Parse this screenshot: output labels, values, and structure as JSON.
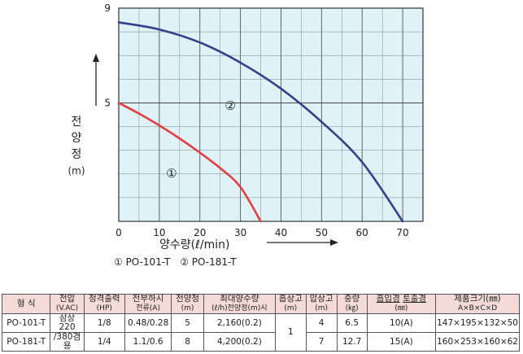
{
  "chart_data": {
    "type": "line",
    "xlabel": "양수량(ℓ/min)",
    "ylabel_chars": [
      "전",
      "양",
      "정",
      "(m)"
    ],
    "x_ticks": [
      "0",
      "10",
      "20",
      "30",
      "40",
      "50",
      "60",
      "70"
    ],
    "y_ticks": [
      "9",
      "5"
    ],
    "xlim": [
      0,
      75
    ],
    "ylim": [
      0,
      9
    ],
    "grid": true,
    "background": "#dff2f8",
    "series": [
      {
        "name": "① PO-101-T",
        "color": "#e04040",
        "x": [
          0,
          5,
          10,
          15,
          20,
          25,
          30,
          35
        ],
        "y": [
          5.0,
          4.55,
          4.05,
          3.5,
          2.9,
          2.25,
          1.45,
          0.0
        ]
      },
      {
        "name": "② PO-181-T",
        "color": "#34408a",
        "x": [
          0,
          10,
          20,
          30,
          40,
          50,
          60,
          70
        ],
        "y": [
          8.4,
          8.1,
          7.55,
          6.7,
          5.6,
          4.2,
          2.5,
          0.0
        ]
      }
    ],
    "curve_labels": [
      {
        "text": "②",
        "x": 27.5,
        "y": 4.7
      },
      {
        "text": "①",
        "x": 13,
        "y": 1.85
      }
    ]
  },
  "legend": {
    "item1": "① PO-101-T",
    "item2": "② PO-181-T"
  },
  "table": {
    "headers": {
      "model": "형 식",
      "voltage": "전압",
      "voltage_unit": "(V.AC)",
      "power": "정격출력",
      "power_unit": "(HP)",
      "current": "전부하시",
      "current_unit": "전류(A)",
      "head": "전양정",
      "head_unit": "(m)",
      "maxflow": "최대양수량",
      "maxflow_unit": "(ℓ/h)전양정(m)시",
      "suction": "흡상고",
      "suction_unit": "(m)",
      "pressure": "압상고",
      "pressure_unit": "(m)",
      "weight": "중량",
      "weight_unit": "(㎏)",
      "diameter_in": "흡입경",
      "diameter_out": "토출경",
      "diameter_unit": "(㎜)",
      "size": "제품크기(㎜)",
      "size_formula": "A×B×C×D"
    },
    "rows": [
      {
        "model": "PO-101-T",
        "voltage": "삼상220",
        "power": "1/8",
        "current": "0.48/0.28",
        "head": "5",
        "maxflow": "2,160(0.2)",
        "pressure": "4",
        "weight": "6.5",
        "diameter": "10(A)",
        "size": "147×195×132×50"
      },
      {
        "model": "PO-181-T",
        "voltage": "/380겸용",
        "power": "1/4",
        "current": "1.1/0.6",
        "head": "8",
        "maxflow": "4,200(0.2)",
        "pressure": "7",
        "weight": "12.7",
        "diameter": "15(A)",
        "size": "160×253×160×62"
      }
    ],
    "suction_shared": "1"
  }
}
